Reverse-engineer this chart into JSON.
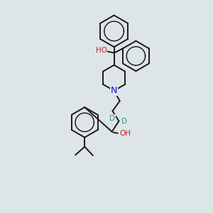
{
  "bg_color": "#dde5e8",
  "bond_color": "#1a1a1a",
  "bond_width": 1.4,
  "atom_colors": {
    "O": "#cc2222",
    "N": "#1111cc",
    "D": "#3a9090",
    "C": "#1a1a1a"
  }
}
